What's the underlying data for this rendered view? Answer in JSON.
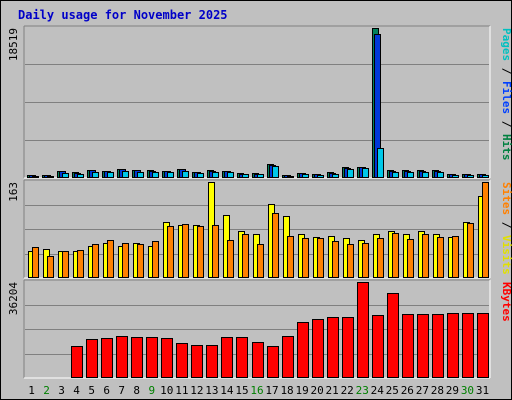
{
  "chart_data": {
    "type": "bar",
    "title": "Daily usage for November 2025",
    "x_labels": [
      "1",
      "2",
      "3",
      "4",
      "5",
      "6",
      "7",
      "8",
      "9",
      "10",
      "11",
      "12",
      "13",
      "14",
      "15",
      "16",
      "17",
      "18",
      "19",
      "20",
      "21",
      "22",
      "23",
      "24",
      "25",
      "26",
      "27",
      "28",
      "29",
      "30",
      "31"
    ],
    "weekend_days": [
      2,
      9,
      16,
      23,
      30
    ],
    "weekend_label_color": "#008000",
    "weekday_label_color": "#000000",
    "panels": [
      {
        "id": "hits",
        "max_label": "18519",
        "ylim": [
          0,
          18519
        ],
        "y_title_parts": [
          {
            "text": "Pages",
            "color": "#00c0c0"
          },
          {
            "text": " / ",
            "color": "#000000"
          },
          {
            "text": "Files",
            "color": "#0040ff"
          },
          {
            "text": " / ",
            "color": "#000000"
          },
          {
            "text": "Hits",
            "color": "#008040"
          }
        ],
        "series": [
          {
            "name": "Hits",
            "color": "#00805c",
            "values": [
              420,
              380,
              900,
              700,
              1000,
              900,
              1100,
              1000,
              950,
              900,
              1100,
              800,
              950,
              900,
              600,
              600,
              1700,
              400,
              650,
              500,
              700,
              1300,
              1400,
              18519,
              950,
              950,
              950,
              950,
              500,
              500,
              500
            ]
          },
          {
            "name": "Files",
            "color": "#0038d8",
            "values": [
              400,
              360,
              850,
              650,
              950,
              850,
              1050,
              950,
              900,
              850,
              1050,
              750,
              900,
              850,
              550,
              550,
              1600,
              380,
              600,
              470,
              650,
              1250,
              1350,
              17800,
              900,
              900,
              900,
              900,
              480,
              480,
              480
            ]
          },
          {
            "name": "Pages",
            "color": "#00c8e8",
            "values": [
              300,
              250,
              650,
              500,
              800,
              700,
              850,
              800,
              750,
              700,
              850,
              600,
              750,
              700,
              450,
              450,
              1500,
              300,
              500,
              380,
              550,
              1150,
              1250,
              3700,
              800,
              800,
              800,
              800,
              380,
              380,
              380
            ]
          }
        ]
      },
      {
        "id": "visits",
        "max_label": "163",
        "ylim": [
          0,
          163
        ],
        "y_title_parts": [
          {
            "text": "Sites",
            "color": "#ff8000"
          },
          {
            "text": " / ",
            "color": "#000000"
          },
          {
            "text": "Visits",
            "color": "#e0e000"
          }
        ],
        "series": [
          {
            "name": "Visits",
            "color": "#ffff00",
            "values": [
              45,
              50,
              45,
              45,
              55,
              60,
              55,
              60,
              55,
              95,
              90,
              90,
              163,
              107,
              80,
              75,
              125,
              105,
              75,
              70,
              72,
              68,
              65,
              75,
              80,
              75,
              80,
              75,
              70,
              95,
              140
            ]
          },
          {
            "name": "Sites",
            "color": "#ff8000",
            "values": [
              52,
              38,
              45,
              48,
              58,
              65,
              60,
              57,
              62,
              88,
              92,
              88,
              90,
              65,
              75,
              58,
              110,
              72,
              68,
              68,
              62,
              57,
              60,
              68,
              77,
              67,
              74,
              70,
              72,
              93,
              163
            ]
          }
        ]
      },
      {
        "id": "kbytes",
        "max_label": "36204",
        "ylim": [
          0,
          36204
        ],
        "y_title_parts": [
          {
            "text": "KBytes",
            "color": "#ff0000"
          }
        ],
        "series": [
          {
            "name": "KBytes",
            "color": "#ff0000",
            "values": [
              0,
              0,
              0,
              12200,
              14800,
              15200,
              16000,
              15500,
              15500,
              15200,
              13200,
              12400,
              12400,
              15500,
              15500,
              13600,
              12200,
              16000,
              21000,
              22300,
              22900,
              22900,
              36204,
              23600,
              32100,
              24000,
              24000,
              24000,
              24700,
              24700,
              24700
            ]
          }
        ]
      }
    ]
  }
}
